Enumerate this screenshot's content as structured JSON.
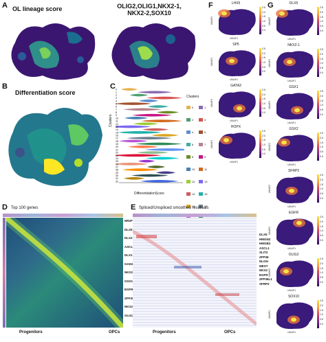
{
  "panels": {
    "A": {
      "label": "A",
      "title_left": "OL lineage score",
      "title_right_line1": "OLIG2,OLIG1,NKX2-1,",
      "title_right_line2": "NKX2-2,SOX10"
    },
    "B": {
      "label": "B",
      "title": "Differentiation score"
    },
    "C": {
      "label": "C",
      "ylabel": "Clusters",
      "xlabel": "DifferentiationScore",
      "legend_title": "Clusters",
      "clusters": [
        "0",
        "1",
        "2",
        "3",
        "4",
        "5",
        "6",
        "7",
        "8",
        "9",
        "10",
        "11",
        "12",
        "13",
        "14",
        "15",
        "16",
        "17",
        "18",
        "19",
        "20",
        "21",
        "22",
        "23",
        "24",
        "25",
        "26",
        "27",
        "28",
        "29",
        "30",
        "31",
        "32"
      ]
    },
    "D": {
      "label": "D",
      "title": "Top 100 genes",
      "genes": [
        "NR2F1",
        "DLX5",
        "DLX2",
        "ASCL1",
        "DLX1",
        "GAD2",
        "NKX2-1",
        "GSX1",
        "EGFR",
        "ZFP36L1",
        "NKX2-2",
        "OLIG2"
      ],
      "x_left": "Progenitors",
      "x_right": "OPCs"
    },
    "E": {
      "label": "E",
      "title": "Spliced/Unspliced smoothed residuals",
      "genes": [
        "DLX5",
        "HMGN2",
        "HMGB2",
        "ASCL1",
        "SLIT2",
        "ZFP36",
        "NLGN",
        "MEST",
        "NKX2",
        "EGFR",
        "ZFP36L1",
        "SFRP2"
      ],
      "x_left": "Progenitors",
      "x_right": "OPCs"
    },
    "F": {
      "label": "F",
      "genes": [
        "LHX5",
        "SP5",
        "GATA3",
        "HOPX"
      ]
    },
    "G": {
      "label": "G",
      "genes": [
        "DLX5",
        "NKX2-1",
        "GSX1",
        "GSX2",
        "SFRP2",
        "EGFR",
        "OLIG2",
        "SOX10"
      ]
    }
  },
  "umap_axis": {
    "x": "UMAP1",
    "y": "UMAP2"
  },
  "colorbar_ticks": [
    "2.5",
    "2.0",
    "1.5",
    "1.0",
    "0.5",
    "0.0"
  ]
}
